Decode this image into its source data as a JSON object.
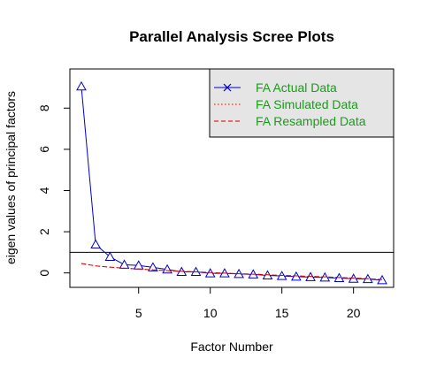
{
  "chart_data": {
    "type": "line",
    "title": "Parallel Analysis Scree Plots",
    "xlabel": "Factor Number",
    "ylabel": "eigen values of principal factors",
    "xlim": [
      0.2,
      22.8
    ],
    "ylim": [
      -0.7,
      9.9
    ],
    "x_ticks": [
      5,
      10,
      15,
      20
    ],
    "y_ticks": [
      0,
      2,
      4,
      6,
      8
    ],
    "reference_line_y": 1,
    "legend_position": "top-right",
    "x": [
      1,
      2,
      3,
      4,
      5,
      6,
      7,
      8,
      9,
      10,
      11,
      12,
      13,
      14,
      15,
      16,
      17,
      18,
      19,
      20,
      21,
      22
    ],
    "series": [
      {
        "name": "FA  Actual Data",
        "style": "line-triangles",
        "color": "#0000cc",
        "values": [
          9.05,
          1.38,
          0.78,
          0.4,
          0.36,
          0.27,
          0.17,
          0.05,
          0.05,
          -0.02,
          -0.02,
          -0.05,
          -0.07,
          -0.12,
          -0.15,
          -0.18,
          -0.2,
          -0.22,
          -0.25,
          -0.28,
          -0.3,
          -0.35
        ]
      },
      {
        "name": "FA  Simulated Data",
        "style": "dotted",
        "color": "#ff0000",
        "values": [
          0.46,
          0.34,
          0.28,
          0.23,
          0.19,
          0.15,
          0.11,
          0.08,
          0.05,
          0.02,
          -0.01,
          -0.04,
          -0.06,
          -0.09,
          -0.12,
          -0.14,
          -0.17,
          -0.19,
          -0.22,
          -0.25,
          -0.28,
          -0.32
        ]
      },
      {
        "name": "FA  Resampled Data",
        "style": "dashed",
        "color": "#cc0000",
        "values": [
          0.46,
          0.34,
          0.28,
          0.23,
          0.19,
          0.15,
          0.11,
          0.08,
          0.05,
          0.02,
          -0.01,
          -0.04,
          -0.06,
          -0.09,
          -0.12,
          -0.14,
          -0.17,
          -0.19,
          -0.22,
          -0.25,
          -0.28,
          -0.32
        ]
      }
    ]
  }
}
